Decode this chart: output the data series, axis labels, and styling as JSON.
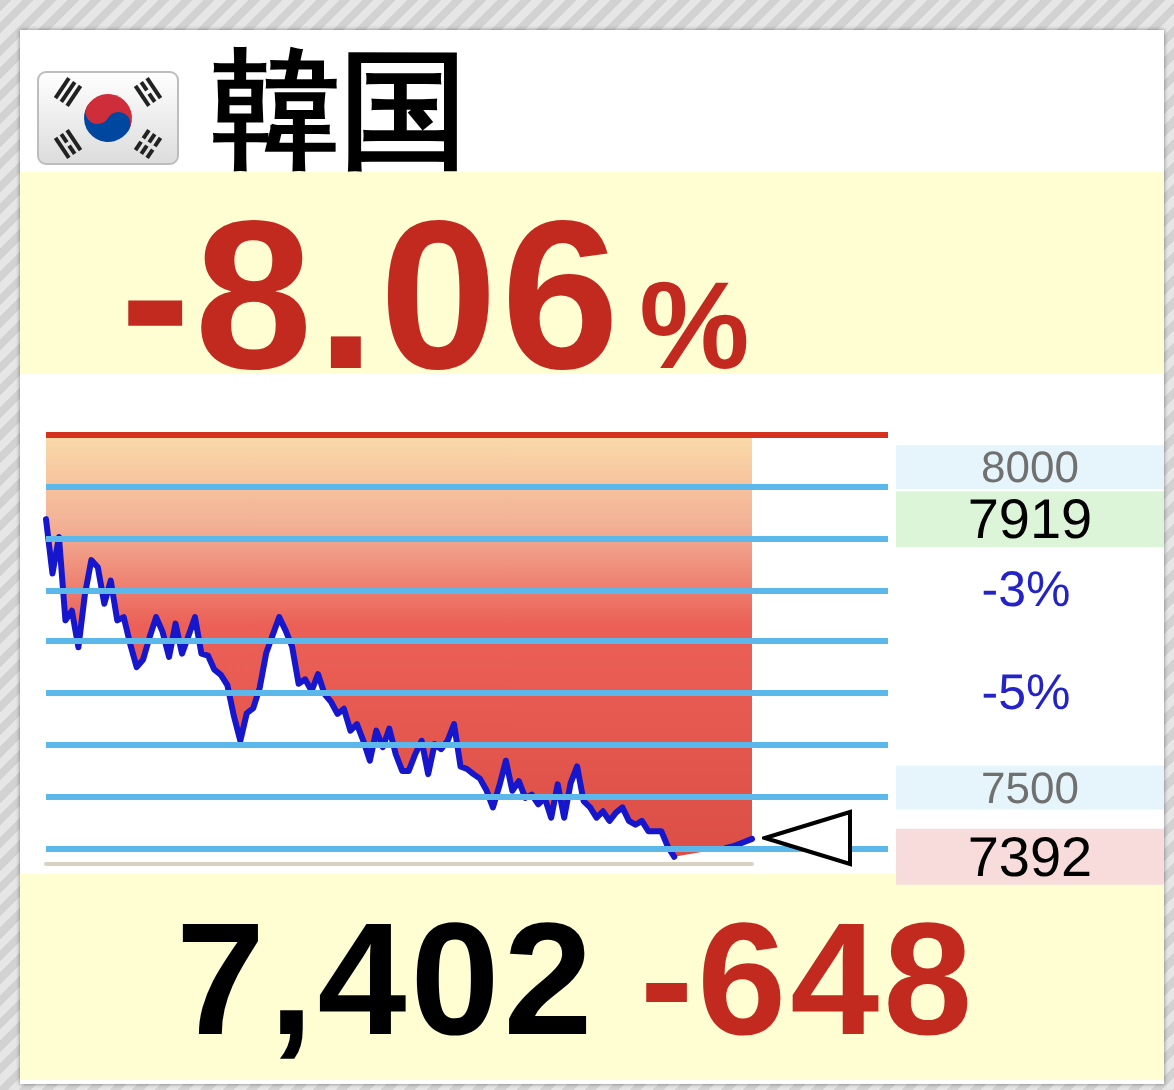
{
  "chart_data": {
    "type": "line",
    "title": "韓国",
    "annotations": [
      "-8.06%",
      "7,402",
      "-648"
    ],
    "categories": [
      null,
      null,
      null,
      null,
      null,
      null,
      null,
      null,
      null,
      null,
      null,
      null,
      null,
      null,
      null,
      null,
      null,
      null,
      null,
      null,
      null,
      null,
      null,
      null,
      null,
      null,
      null,
      null,
      null,
      null,
      null,
      null,
      null,
      null,
      null,
      null,
      null,
      null,
      null,
      null,
      null,
      null,
      null,
      null,
      null,
      null,
      null,
      null,
      null,
      null,
      null,
      null,
      null,
      null,
      null,
      null,
      null,
      null,
      null,
      null,
      null,
      null,
      null,
      null,
      null,
      null,
      null,
      null,
      null,
      null,
      null,
      null,
      null,
      null,
      null,
      null,
      null,
      null,
      null,
      null,
      null,
      null,
      null,
      null,
      null,
      null,
      null,
      null,
      null,
      null,
      null,
      null,
      null,
      null,
      null,
      null,
      null,
      null,
      null,
      null,
      null,
      null,
      null,
      null,
      null,
      null,
      null,
      null,
      null,
      null
    ],
    "series": [
      {
        "color": "#1616cc",
        "values": [
          7919,
          7834,
          7891,
          7761,
          7776,
          7719,
          7801,
          7855,
          7844,
          7787,
          7823,
          7761,
          7766,
          7724,
          7688,
          7700,
          7735,
          7766,
          7743,
          7704,
          7756,
          7709,
          7737,
          7766,
          7709,
          7706,
          7684,
          7676,
          7660,
          7612,
          7573,
          7616,
          7624,
          7656,
          7710,
          7738,
          7766,
          7745,
          7720,
          7662,
          7669,
          7651,
          7677,
          7646,
          7634,
          7615,
          7623,
          7589,
          7599,
          7573,
          7542,
          7589,
          7563,
          7592,
          7552,
          7526,
          7526,
          7552,
          7573,
          7521,
          7568,
          7560,
          7573,
          7599,
          7533,
          7529,
          7521,
          7514,
          7496,
          7469,
          7503,
          7542,
          7495,
          7510,
          7484,
          7489,
          7474,
          7484,
          7453,
          7505,
          7453,
          7507,
          7533,
          7479,
          7469,
          7453,
          7463,
          7448,
          7461,
          7469,
          7448,
          7442,
          7448,
          7432,
          7432,
          7432,
          7408,
          7392,
          null,
          null,
          null,
          null,
          null,
          null,
          null,
          null,
          null,
          null,
          null,
          null
        ],
        "lower": [
          7919,
          7834,
          7891,
          7761,
          7776,
          7719,
          7801,
          7855,
          7844,
          7787,
          7823,
          7761,
          7766,
          7724,
          7688,
          7700,
          7735,
          7766,
          7743,
          7704,
          7756,
          7709,
          7737,
          7766,
          7709,
          7706,
          7684,
          7676,
          7660,
          7612,
          7573,
          7616,
          7624,
          7656,
          7710,
          7738,
          7766,
          7745,
          7720,
          7662,
          7669,
          7651,
          7677,
          7646,
          7634,
          7615,
          7623,
          7589,
          7599,
          7573,
          7542,
          7589,
          7563,
          7592,
          7552,
          7526,
          7526,
          7552,
          7573,
          7521,
          7568,
          7560,
          7573,
          7599,
          7533,
          7529,
          7521,
          7514,
          7496,
          7469,
          7503,
          7542,
          7495,
          7510,
          7484,
          7489,
          7474,
          7484,
          7453,
          7505,
          7453,
          7507,
          7533,
          7479,
          7469,
          7453,
          7463,
          7448,
          7461,
          7469,
          7448,
          7442,
          7448,
          7432,
          7432,
          7432,
          7408,
          7392,
          null,
          null,
          null,
          null,
          null,
          null,
          null,
          7406,
          7408,
          7412,
          7416,
          7420
        ],
        "upper": [
          8050,
          8050,
          8050,
          8050,
          8050,
          8050,
          8050,
          8050,
          8050,
          8050,
          8050,
          8050,
          8050,
          8050,
          8050,
          8050,
          8050,
          8050,
          8050,
          8050,
          8050,
          8050,
          8050,
          8050,
          8050,
          8050,
          8050,
          8050,
          8050,
          8050,
          8050,
          8050,
          8050,
          8050,
          8050,
          8050,
          8050,
          8050,
          8050,
          8050,
          8050,
          8050,
          8050,
          8050,
          8050,
          8050,
          8050,
          8050,
          8050,
          8050,
          8050,
          8050,
          8050,
          8050,
          8050,
          8050,
          8050,
          8050,
          8050,
          8050,
          8050,
          8050,
          8050,
          8050,
          8050,
          8050,
          8050,
          8050,
          8050,
          8050,
          8050,
          8050,
          8050,
          8050,
          8050,
          8050,
          8050,
          8050,
          8050,
          8050,
          8050,
          8050,
          8050,
          8050,
          8050,
          8050,
          8050,
          8050,
          8050,
          8050,
          8050,
          8050,
          8050,
          8050,
          8050,
          8050,
          8050,
          8050,
          null,
          null,
          null,
          null,
          null,
          null,
          null,
          8050,
          8050,
          8050,
          8050,
          8050
        ]
      },
      {
        "color": "#1616cc",
        "values": [
          null,
          null,
          null,
          null,
          null,
          null,
          null,
          null,
          null,
          null,
          null,
          null,
          null,
          null,
          null,
          null,
          null,
          null,
          null,
          null,
          null,
          null,
          null,
          null,
          null,
          null,
          null,
          null,
          null,
          null,
          null,
          null,
          null,
          null,
          null,
          null,
          null,
          null,
          null,
          null,
          null,
          null,
          null,
          null,
          null,
          null,
          null,
          null,
          null,
          null,
          null,
          null,
          null,
          null,
          null,
          null,
          null,
          null,
          null,
          null,
          null,
          null,
          null,
          null,
          null,
          null,
          null,
          null,
          null,
          null,
          null,
          null,
          null,
          null,
          null,
          null,
          null,
          null,
          null,
          null,
          null,
          null,
          null,
          null,
          null,
          null,
          null,
          null,
          null,
          null,
          null,
          null,
          null,
          null,
          null,
          null,
          null,
          null,
          null,
          null,
          null,
          null,
          null,
          null,
          null,
          7406,
          7408,
          7412,
          7416,
          7420
        ]
      }
    ],
    "ylim": [
      7382,
      8050
    ],
    "yticks": [
      7392,
      7500,
      7919,
      8000
    ],
    "y2lim": [
      -8.3,
      0
    ],
    "y2ticks": [
      {
        "value": -3,
        "label": "-3%"
      },
      {
        "value": -5,
        "label": "-5%"
      }
    ],
    "ref_lines": [
      {
        "axis": "y2",
        "value": 0,
        "color": "#d4311f"
      },
      {
        "axis": "y2",
        "value": -1,
        "color": "#5cb8ea"
      },
      {
        "axis": "y2",
        "value": -2,
        "color": "#5cb8ea"
      },
      {
        "axis": "y2",
        "value": -3,
        "color": "#5cb8ea"
      },
      {
        "axis": "y2",
        "value": -4,
        "color": "#5cb8ea"
      },
      {
        "axis": "y2",
        "value": -5,
        "color": "#5cb8ea"
      },
      {
        "axis": "y2",
        "value": -6,
        "color": "#5cb8ea"
      },
      {
        "axis": "y2",
        "value": -7,
        "color": "#5cb8ea"
      },
      {
        "axis": "y2",
        "value": -8,
        "color": "#5cb8ea"
      }
    ]
  }
}
